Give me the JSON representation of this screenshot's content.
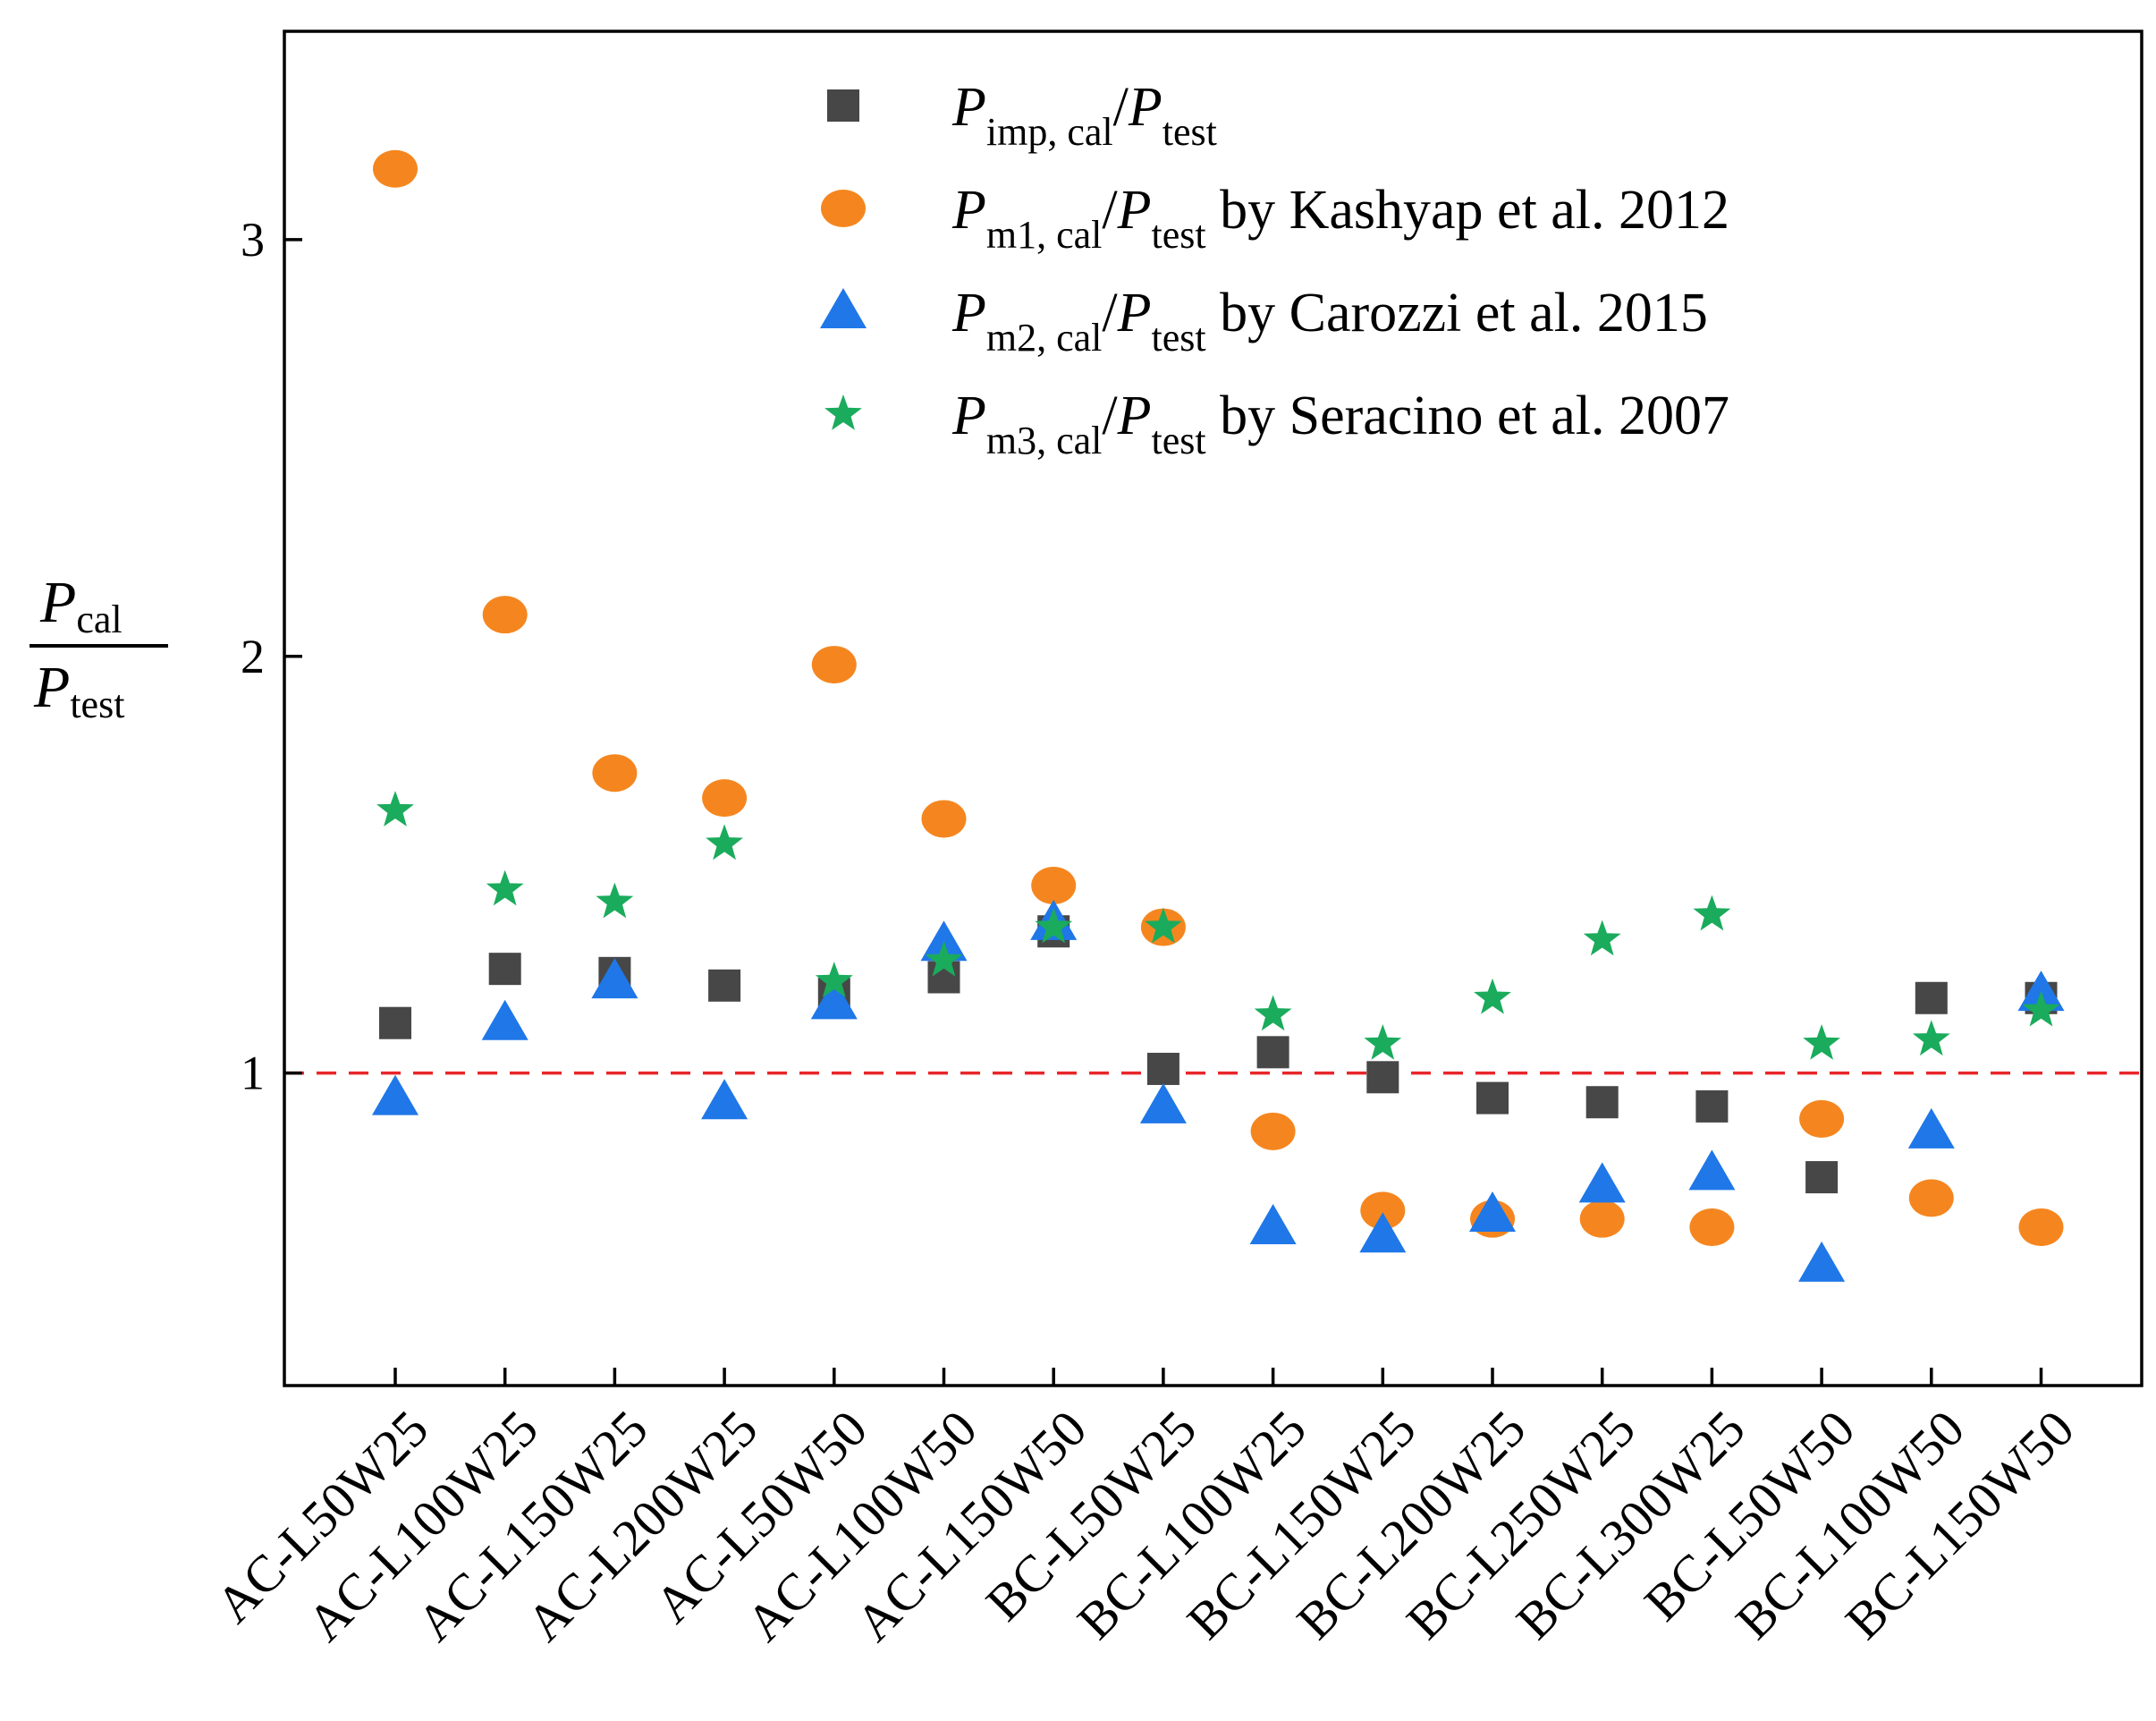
{
  "chart_data": {
    "type": "scatter",
    "categories": [
      "AC-L50W25",
      "AC-L100W25",
      "AC-L150W25",
      "AC-L200W25",
      "AC-L50W50",
      "AC-L100W50",
      "AC-L150W50",
      "BC-L50W25",
      "BC-L100W25",
      "BC-L150W25",
      "BC-L200W25",
      "BC-L250W25",
      "BC-L300W25",
      "BC-L50W50",
      "BC-L100W50",
      "BC-L150W50"
    ],
    "ylabel": {
      "numerator_main": "P",
      "numerator_sub": "cal",
      "denominator_main": "P",
      "denominator_sub": "test"
    },
    "ylim": [
      0.25,
      3.5
    ],
    "yticks": [
      1,
      2,
      3
    ],
    "ytick_labels": [
      "1",
      "2",
      "3"
    ],
    "reference_line": {
      "y": 1.0,
      "color": "#e8262a",
      "style": "dashed"
    },
    "series": [
      {
        "name": "P_imp,cal/P_test",
        "marker": "square",
        "color": "#474747",
        "legend": {
          "main1": "P",
          "sub1": "imp, cal",
          "slash": "/",
          "main2": "P",
          "sub2": "test",
          "suffix": ""
        },
        "values": [
          1.12,
          1.25,
          1.24,
          1.21,
          1.19,
          1.23,
          1.34,
          1.01,
          1.05,
          0.99,
          0.94,
          0.93,
          0.92,
          0.75,
          1.18,
          1.18
        ]
      },
      {
        "name": "P_m1,cal/P_test by Kashyap et al. 2012",
        "marker": "circle",
        "color": "#f5861f",
        "legend": {
          "main1": "P",
          "sub1": "m1, cal",
          "slash": "/",
          "main2": "P",
          "sub2": "test",
          "suffix": " by Kashyap et al. 2012"
        },
        "values": [
          3.17,
          2.1,
          1.72,
          1.66,
          1.98,
          1.61,
          1.45,
          1.35,
          0.86,
          0.67,
          0.65,
          0.65,
          0.63,
          0.89,
          0.7,
          0.63
        ]
      },
      {
        "name": "P_m2,cal/P_test by Carozzi et al. 2015",
        "marker": "triangle",
        "color": "#1f77e8",
        "legend": {
          "main1": "P",
          "sub1": "m2, cal",
          "slash": "/",
          "main2": "P",
          "sub2": "test",
          "suffix": " by Carozzi et al. 2015"
        },
        "values": [
          0.94,
          1.12,
          1.22,
          0.93,
          1.17,
          1.31,
          1.36,
          0.92,
          0.63,
          0.61,
          0.66,
          0.73,
          0.76,
          0.54,
          0.86,
          1.19
        ]
      },
      {
        "name": "P_m3,cal/P_test by Seracino et al. 2007",
        "marker": "star",
        "color": "#1aab5c",
        "legend": {
          "main1": "P",
          "sub1": "m3, cal",
          "slash": "/",
          "main2": "P",
          "sub2": "test",
          "suffix": " by Seracino et al. 2007"
        },
        "values": [
          1.63,
          1.44,
          1.41,
          1.55,
          1.22,
          1.27,
          1.35,
          1.35,
          1.14,
          1.07,
          1.18,
          1.32,
          1.38,
          1.07,
          1.08,
          1.15
        ]
      }
    ]
  }
}
